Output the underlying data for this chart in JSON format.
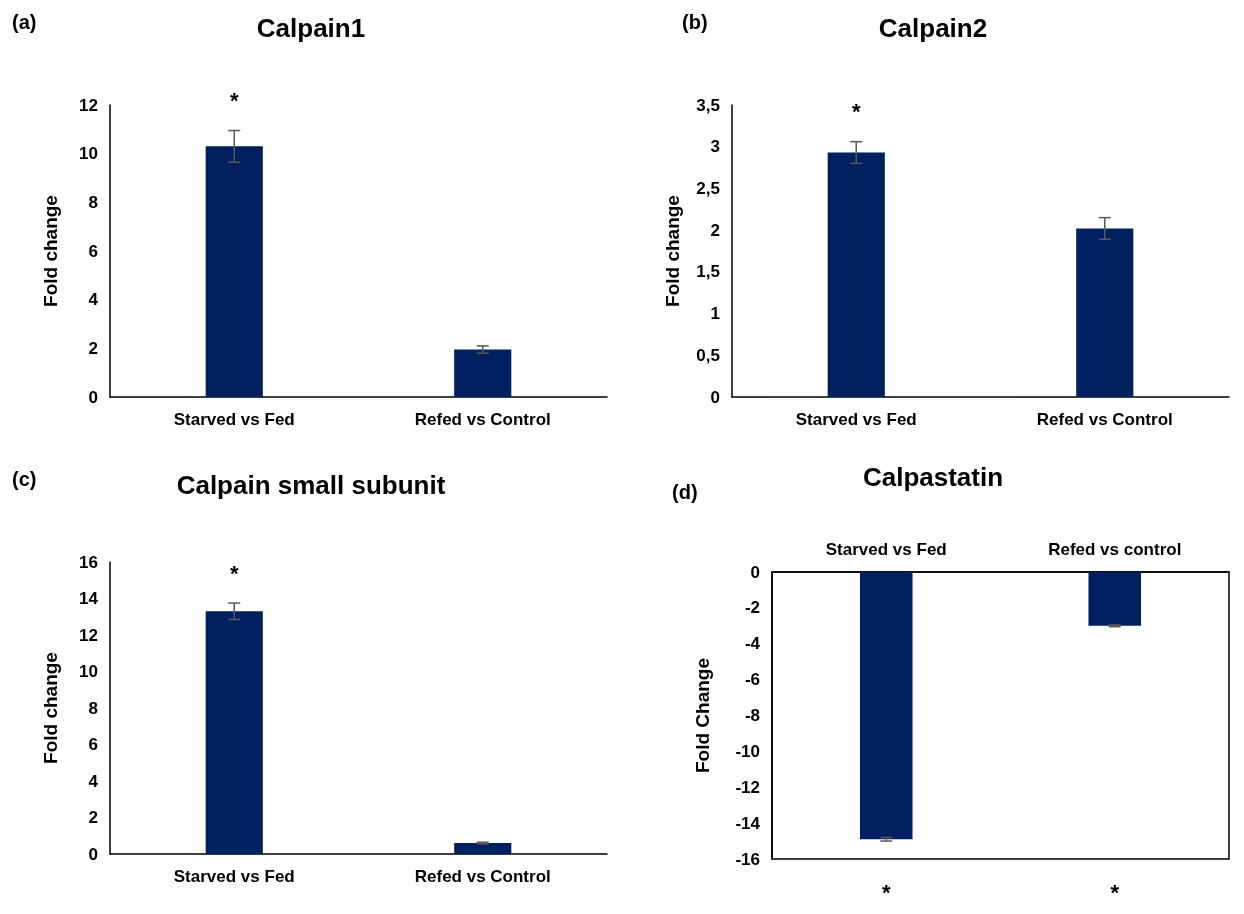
{
  "chart_data": [
    {
      "type": "bar",
      "title": "Calpain1",
      "ylabel": "Fold change",
      "categories": [
        "Starved vs Fed",
        "Refed vs Control"
      ],
      "series": [
        {
          "color": "#002060",
          "values": [
            10.3,
            1.95
          ],
          "errors": [
            0.65,
            0.15
          ]
        }
      ],
      "ylim": [
        0,
        12
      ],
      "yticks": [
        0,
        2,
        4,
        6,
        8,
        10,
        12
      ],
      "annotations": [
        "(a)",
        "*"
      ]
    },
    {
      "type": "bar",
      "title": "Calpain2",
      "ylabel": "Fold change",
      "categories": [
        "Starved vs Fed",
        "Refed vs Control"
      ],
      "series": [
        {
          "color": "#002060",
          "values": [
            2.93,
            2.02
          ],
          "errors": [
            0.13,
            0.13
          ]
        }
      ],
      "ylim": [
        0,
        3.5
      ],
      "yticks": [
        0,
        {
          "value": 0.5,
          "label": "0,5"
        },
        1,
        {
          "value": 1.5,
          "label": "1,5"
        },
        2,
        {
          "value": 2.5,
          "label": "2,5"
        },
        3,
        {
          "value": 3.5,
          "label": "3,5"
        }
      ],
      "annotations": [
        "(b)",
        "*"
      ]
    },
    {
      "type": "bar",
      "title": "Calpain small subunit",
      "ylabel": "Fold change",
      "categories": [
        "Starved vs Fed",
        "Refed vs Control"
      ],
      "series": [
        {
          "color": "#002060",
          "values": [
            13.3,
            0.6
          ],
          "errors": [
            0.45,
            0.05
          ]
        }
      ],
      "ylim": [
        0,
        16
      ],
      "yticks": [
        0,
        2,
        4,
        6,
        8,
        10,
        12,
        14,
        16
      ],
      "annotations": [
        "(c)",
        "*"
      ]
    },
    {
      "type": "bar",
      "title": "Calpastatin",
      "ylabel": "Fold Change",
      "categories": [
        "Starved vs Fed",
        "Refed vs control"
      ],
      "series": [
        {
          "color": "#002060",
          "values": [
            -14.9,
            -3.0
          ],
          "errors": [
            0.1,
            0.05
          ]
        }
      ],
      "ylim": [
        -16,
        0
      ],
      "yticks": [
        -16,
        -14,
        -12,
        -10,
        -8,
        -6,
        -4,
        -2,
        0
      ],
      "annotations": [
        "(d)",
        "*",
        "*"
      ]
    }
  ]
}
